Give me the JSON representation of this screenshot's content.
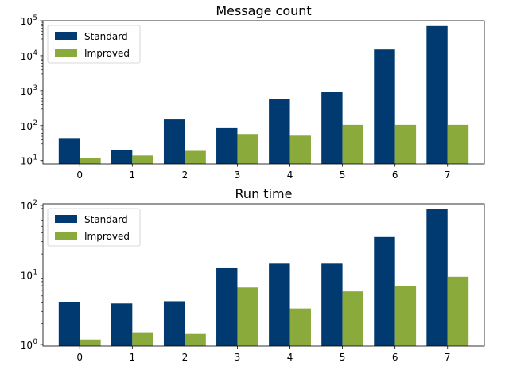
{
  "chart_data": [
    {
      "type": "bar",
      "title": "Message count",
      "xlabel": "",
      "ylabel": "",
      "yscale": "log",
      "ylim": [
        8,
        100000
      ],
      "grid": false,
      "legend_position": "top-left",
      "categories": [
        "0",
        "1",
        "2",
        "3",
        "4",
        "5",
        "6",
        "7"
      ],
      "series": [
        {
          "name": "Standard",
          "color": "#003a70",
          "values": [
            42,
            20,
            150,
            85,
            560,
            900,
            15000,
            70000
          ]
        },
        {
          "name": "Improved",
          "color": "#8aaa3c",
          "values": [
            12,
            14,
            19,
            55,
            52,
            105,
            105,
            105
          ]
        }
      ],
      "yticks": [
        {
          "value": 10,
          "base": "10",
          "exp": "1"
        },
        {
          "value": 100,
          "base": "10",
          "exp": "2"
        },
        {
          "value": 1000,
          "base": "10",
          "exp": "3"
        },
        {
          "value": 10000,
          "base": "10",
          "exp": "4"
        },
        {
          "value": 100000,
          "base": "10",
          "exp": "5"
        }
      ]
    },
    {
      "type": "bar",
      "title": "Run time",
      "xlabel": "",
      "ylabel": "",
      "yscale": "log",
      "ylim": [
        0.95,
        105
      ],
      "grid": false,
      "legend_position": "top-left",
      "categories": [
        "0",
        "1",
        "2",
        "3",
        "4",
        "5",
        "6",
        "7"
      ],
      "series": [
        {
          "name": "Standard",
          "color": "#003a70",
          "values": [
            4.1,
            3.9,
            4.2,
            12.5,
            14.5,
            14.5,
            35,
            88
          ]
        },
        {
          "name": "Improved",
          "color": "#8aaa3c",
          "values": [
            1.18,
            1.5,
            1.42,
            6.6,
            3.3,
            5.8,
            6.9,
            9.4
          ]
        }
      ],
      "yticks": [
        {
          "value": 1,
          "base": "10",
          "exp": "0"
        },
        {
          "value": 10,
          "base": "10",
          "exp": "1"
        },
        {
          "value": 100,
          "base": "10",
          "exp": "2"
        }
      ]
    }
  ]
}
